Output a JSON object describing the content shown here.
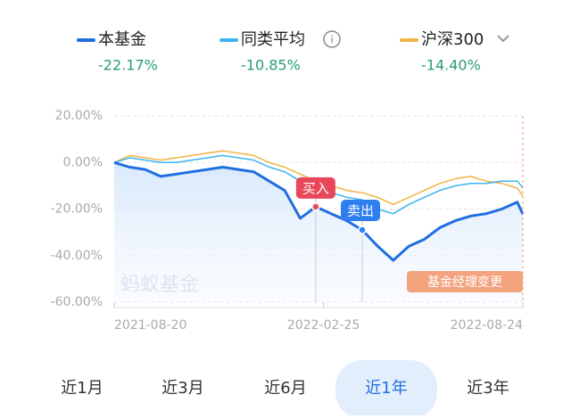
{
  "legend": [
    {
      "name": "本基金",
      "value": "-22.17%"
    },
    {
      "name": "同类平均",
      "value": "-10.85%"
    },
    {
      "name": "沪深300",
      "value": "-14.40%"
    }
  ],
  "chart_data": {
    "type": "line",
    "x": [
      "2021-08-20",
      "2021-09-03",
      "2021-09-17",
      "2021-10-01",
      "2021-10-15",
      "2021-10-29",
      "2021-11-12",
      "2021-11-26",
      "2021-12-10",
      "2021-12-24",
      "2022-01-07",
      "2022-01-21",
      "2022-02-04",
      "2022-02-18",
      "2022-03-04",
      "2022-03-18",
      "2022-04-01",
      "2022-04-15",
      "2022-04-29",
      "2022-05-13",
      "2022-05-27",
      "2022-06-10",
      "2022-06-24",
      "2022-07-08",
      "2022-07-22",
      "2022-08-05",
      "2022-08-19",
      "2022-08-24"
    ],
    "series": [
      {
        "name": "本基金",
        "color": "#1f6fe0",
        "values": [
          0,
          -2,
          -3,
          -6,
          -5,
          -4,
          -3,
          -2,
          -3,
          -4,
          -8,
          -12,
          -24,
          -19,
          -22,
          -25,
          -29,
          -36,
          -42,
          -36,
          -33,
          -28,
          -25,
          -23,
          -22,
          -20,
          -17,
          -22.17
        ]
      },
      {
        "name": "同类平均",
        "color": "#3cb4f0",
        "values": [
          0,
          2,
          1,
          0,
          0,
          1,
          2,
          3,
          2,
          1,
          -2,
          -4,
          -8,
          -12,
          -13,
          -15,
          -16,
          -20,
          -22,
          -18,
          -15,
          -12,
          -10,
          -9,
          -9,
          -8,
          -8,
          -10.85
        ]
      },
      {
        "name": "沪深300",
        "color": "#f0b444",
        "values": [
          0,
          3,
          2,
          1,
          2,
          3,
          4,
          5,
          4,
          3,
          0,
          -2,
          -5,
          -8,
          -10,
          -12,
          -13,
          -15,
          -18,
          -15,
          -12,
          -9,
          -7,
          -6,
          -8,
          -9,
          -11,
          -14.4
        ]
      }
    ],
    "ylim": [
      -60,
      20
    ],
    "yticks": [
      {
        "value": 20,
        "label": "20.00%"
      },
      {
        "value": 0,
        "label": "0.00%"
      },
      {
        "value": -20,
        "label": "-20.00%"
      },
      {
        "value": -40,
        "label": "-40.00%"
      },
      {
        "value": -60,
        "label": "-60.00%"
      }
    ],
    "xticks": [
      "2021-08-20",
      "2022-02-25",
      "2022-08-24"
    ],
    "grid": true,
    "annotations": [
      "买入",
      "卖出",
      "基金经理变更"
    ]
  },
  "watermark": "蚂蚁基金",
  "tabs": [
    "近1月",
    "近3月",
    "近6月",
    "近1年",
    "近3年"
  ],
  "selected_tab": "近1年"
}
